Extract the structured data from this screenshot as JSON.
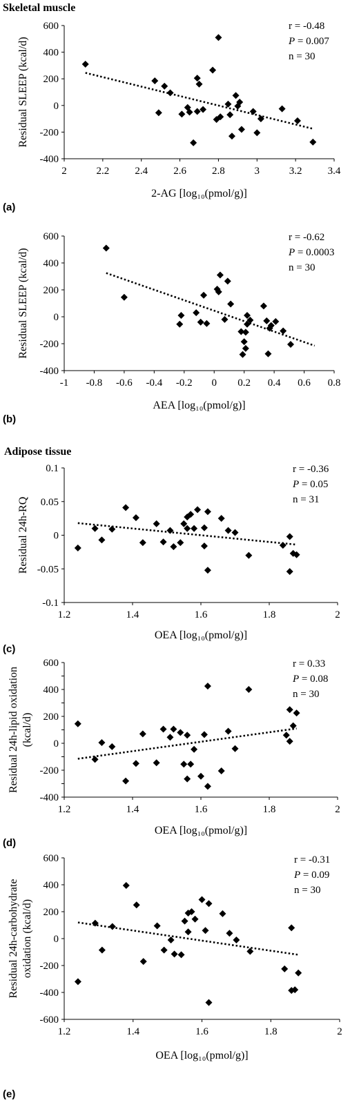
{
  "headings": {
    "skeletal": "Skeletal muscle",
    "adipose": "Adipose tissue"
  },
  "colors": {
    "marker": "#000000",
    "axis": "#000000",
    "trend": "#000000"
  },
  "chart_data": [
    {
      "type": "scatter",
      "panel": "(a)",
      "xlabel": "2-AG [log₁₀(pmol/g)]",
      "ylabel": "Residual SLEEP (kcal/d)",
      "xlim": [
        2,
        3.4
      ],
      "ylim": [
        -400,
        600
      ],
      "xticks": [
        2,
        2.2,
        2.4,
        2.6,
        2.8,
        3,
        3.2,
        3.4
      ],
      "xtick_labels": [
        "2",
        "2.2",
        "2.4",
        "2.6",
        "2.8",
        "3",
        "3.2",
        "3.4"
      ],
      "yticks": [
        -400,
        -200,
        0,
        200,
        400,
        600
      ],
      "ytick_labels": [
        "-400",
        "-200",
        "0",
        "200",
        "400",
        "600"
      ],
      "stats": [
        "r = -0.48",
        "P = 0.007",
        "n = 30"
      ],
      "trendline": {
        "style": "dotted",
        "x": [
          2.11,
          3.29
        ],
        "y": [
          245,
          -175
        ]
      },
      "points": [
        [
          2.11,
          310
        ],
        [
          2.47,
          185
        ],
        [
          2.49,
          -55
        ],
        [
          2.52,
          145
        ],
        [
          2.55,
          95
        ],
        [
          2.61,
          -65
        ],
        [
          2.64,
          -15
        ],
        [
          2.65,
          -50
        ],
        [
          2.67,
          -280
        ],
        [
          2.69,
          205
        ],
        [
          2.7,
          160
        ],
        [
          2.69,
          -45
        ],
        [
          2.72,
          -30
        ],
        [
          2.77,
          265
        ],
        [
          2.79,
          -105
        ],
        [
          2.8,
          510
        ],
        [
          2.81,
          -85
        ],
        [
          2.85,
          10
        ],
        [
          2.86,
          -70
        ],
        [
          2.87,
          -230
        ],
        [
          2.89,
          75
        ],
        [
          2.9,
          -5
        ],
        [
          2.91,
          25
        ],
        [
          2.92,
          -180
        ],
        [
          2.98,
          -45
        ],
        [
          3.0,
          -205
        ],
        [
          3.02,
          -100
        ],
        [
          3.13,
          -25
        ],
        [
          3.21,
          -115
        ],
        [
          3.29,
          -275
        ]
      ]
    },
    {
      "type": "scatter",
      "panel": "(b)",
      "xlabel": "AEA [log₁₀(pmol/g)]",
      "ylabel": "Residual SLEEP (kcal/d)",
      "xlim": [
        -1,
        0.8
      ],
      "ylim": [
        -400,
        600
      ],
      "xticks": [
        -1,
        -0.8,
        -0.6,
        -0.4,
        -0.2,
        0,
        0.2,
        0.4,
        0.6,
        0.8
      ],
      "xtick_labels": [
        "-1",
        "-0.8",
        "-0.6",
        "-0.4",
        "-0.2",
        "0",
        "0.2",
        "0.4",
        "0.6",
        "0.8"
      ],
      "yticks": [
        -400,
        -200,
        0,
        200,
        400,
        600
      ],
      "ytick_labels": [
        "-400",
        "-200",
        "0",
        "200",
        "400",
        "600"
      ],
      "stats": [
        "r = -0.62",
        "P = 0.0003",
        "n = 30"
      ],
      "trendline": {
        "style": "dotted",
        "x": [
          -0.72,
          0.67
        ],
        "y": [
          325,
          -215
        ]
      },
      "points": [
        [
          -0.72,
          510
        ],
        [
          -0.6,
          145
        ],
        [
          -0.23,
          -55
        ],
        [
          -0.22,
          10
        ],
        [
          -0.12,
          30
        ],
        [
          -0.09,
          -40
        ],
        [
          -0.07,
          160
        ],
        [
          -0.05,
          -50
        ],
        [
          0.02,
          205
        ],
        [
          0.03,
          185
        ],
        [
          0.04,
          310
        ],
        [
          0.07,
          -20
        ],
        [
          0.09,
          265
        ],
        [
          0.11,
          95
        ],
        [
          0.18,
          -110
        ],
        [
          0.19,
          -280
        ],
        [
          0.2,
          -185
        ],
        [
          0.21,
          -235
        ],
        [
          0.21,
          -115
        ],
        [
          0.22,
          10
        ],
        [
          0.24,
          -25
        ],
        [
          0.33,
          80
        ],
        [
          0.35,
          -30
        ],
        [
          0.36,
          -275
        ],
        [
          0.37,
          -85
        ],
        [
          0.38,
          -65
        ],
        [
          0.41,
          -35
        ],
        [
          0.46,
          -105
        ],
        [
          0.51,
          -205
        ],
        [
          0.22,
          -55
        ]
      ]
    },
    {
      "type": "scatter",
      "panel": "(c)",
      "xlabel": "OEA [log₁₀(pmol/g)]",
      "ylabel": "Residual 24h-RQ",
      "xlim": [
        1.2,
        2
      ],
      "ylim": [
        -0.1,
        0.1
      ],
      "xticks": [
        1.2,
        1.4,
        1.6,
        1.8,
        2
      ],
      "xtick_labels": [
        "1.2",
        "1.4",
        "1.6",
        "1.8",
        "2"
      ],
      "yticks": [
        -0.1,
        -0.05,
        0,
        0.05,
        0.1
      ],
      "ytick_labels": [
        "-0.1",
        "-0.05",
        "0",
        "0.05",
        "0.1"
      ],
      "stats": [
        "r = -0.36",
        "P = 0.05",
        "n = 31"
      ],
      "trendline": {
        "style": "dotted",
        "x": [
          1.24,
          1.88
        ],
        "y": [
          0.018,
          -0.014
        ]
      },
      "points": [
        [
          1.24,
          -0.019
        ],
        [
          1.29,
          0.01
        ],
        [
          1.31,
          -0.007
        ],
        [
          1.34,
          0.009
        ],
        [
          1.38,
          0.041
        ],
        [
          1.41,
          0.026
        ],
        [
          1.43,
          -0.011
        ],
        [
          1.47,
          0.017
        ],
        [
          1.49,
          -0.01
        ],
        [
          1.51,
          0.007
        ],
        [
          1.52,
          -0.017
        ],
        [
          1.54,
          -0.011
        ],
        [
          1.55,
          0.017
        ],
        [
          1.56,
          0.027
        ],
        [
          1.56,
          0.01
        ],
        [
          1.57,
          0.031
        ],
        [
          1.58,
          0.01
        ],
        [
          1.59,
          0.038
        ],
        [
          1.61,
          -0.016
        ],
        [
          1.61,
          0.011
        ],
        [
          1.62,
          -0.052
        ],
        [
          1.62,
          0.035
        ],
        [
          1.66,
          0.025
        ],
        [
          1.68,
          0.007
        ],
        [
          1.7,
          0.004
        ],
        [
          1.74,
          -0.03
        ],
        [
          1.84,
          -0.015
        ],
        [
          1.86,
          -0.002
        ],
        [
          1.86,
          -0.054
        ],
        [
          1.87,
          -0.027
        ],
        [
          1.88,
          -0.029
        ]
      ]
    },
    {
      "type": "scatter",
      "panel": "(d)",
      "xlabel": "OEA [log₁₀(pmol/g)]",
      "ylabel": "Residual 24h-lipid oxidation (kcal/d)",
      "ylabel_lines": [
        "Residual 24h-lipid oxidation",
        "(kcal/d)"
      ],
      "xlim": [
        1.2,
        2
      ],
      "ylim": [
        -400,
        600
      ],
      "xticks": [
        1.2,
        1.4,
        1.6,
        1.8,
        2
      ],
      "xtick_labels": [
        "1.2",
        "1.4",
        "1.6",
        "1.8",
        "2"
      ],
      "yticks": [
        -400,
        -300,
        -200,
        -100,
        0,
        100,
        200,
        300,
        400,
        500,
        600
      ],
      "ytick_labels": [
        "-400",
        "",
        "-200",
        "",
        "0",
        "",
        "200",
        "",
        "400",
        "",
        "600"
      ],
      "stats": [
        "r = 0.33",
        "P = 0.08",
        "n = 30"
      ],
      "trendline": {
        "style": "dotted",
        "x": [
          1.24,
          1.88
        ],
        "y": [
          -115,
          110
        ]
      },
      "points": [
        [
          1.24,
          145
        ],
        [
          1.29,
          -120
        ],
        [
          1.31,
          5
        ],
        [
          1.34,
          -25
        ],
        [
          1.38,
          -280
        ],
        [
          1.41,
          -150
        ],
        [
          1.43,
          70
        ],
        [
          1.47,
          -145
        ],
        [
          1.49,
          105
        ],
        [
          1.51,
          45
        ],
        [
          1.52,
          105
        ],
        [
          1.54,
          80
        ],
        [
          1.55,
          -155
        ],
        [
          1.56,
          60
        ],
        [
          1.56,
          -265
        ],
        [
          1.57,
          -155
        ],
        [
          1.58,
          -45
        ],
        [
          1.6,
          -245
        ],
        [
          1.61,
          65
        ],
        [
          1.62,
          425
        ],
        [
          1.62,
          -320
        ],
        [
          1.66,
          -205
        ],
        [
          1.68,
          90
        ],
        [
          1.7,
          -40
        ],
        [
          1.74,
          400
        ],
        [
          1.85,
          60
        ],
        [
          1.86,
          250
        ],
        [
          1.86,
          15
        ],
        [
          1.87,
          130
        ],
        [
          1.88,
          225
        ]
      ]
    },
    {
      "type": "scatter",
      "panel": "(e)",
      "xlabel": "OEA [log₁₀(pmol/g)]",
      "ylabel": "Residual 24h-carbohydrate oxidation (kcal/d)",
      "ylabel_lines": [
        "Residual 24h-carbohydrate",
        "oxidation (kcal/d)"
      ],
      "xlim": [
        1.2,
        2
      ],
      "ylim": [
        -600,
        600
      ],
      "xticks": [
        1.2,
        1.4,
        1.6,
        1.8,
        2
      ],
      "xtick_labels": [
        "1.2",
        "1.4",
        "1.6",
        "1.8",
        "2"
      ],
      "yticks": [
        -600,
        -400,
        -200,
        0,
        200,
        400,
        600
      ],
      "ytick_labels": [
        "-600",
        "-400",
        "-200",
        "0",
        "200",
        "400",
        "600"
      ],
      "stats": [
        "r = -0.31",
        "P = 0.09",
        "n = 30"
      ],
      "trendline": {
        "style": "dotted",
        "x": [
          1.24,
          1.88
        ],
        "y": [
          120,
          -120
        ]
      },
      "points": [
        [
          1.24,
          -320
        ],
        [
          1.29,
          115
        ],
        [
          1.31,
          -85
        ],
        [
          1.34,
          90
        ],
        [
          1.38,
          395
        ],
        [
          1.41,
          250
        ],
        [
          1.43,
          -170
        ],
        [
          1.47,
          95
        ],
        [
          1.49,
          -85
        ],
        [
          1.51,
          -10
        ],
        [
          1.52,
          -115
        ],
        [
          1.54,
          -120
        ],
        [
          1.55,
          130
        ],
        [
          1.56,
          50
        ],
        [
          1.56,
          190
        ],
        [
          1.57,
          200
        ],
        [
          1.58,
          145
        ],
        [
          1.6,
          290
        ],
        [
          1.61,
          60
        ],
        [
          1.62,
          260
        ],
        [
          1.62,
          -475
        ],
        [
          1.66,
          185
        ],
        [
          1.68,
          40
        ],
        [
          1.7,
          -10
        ],
        [
          1.74,
          -95
        ],
        [
          1.84,
          -225
        ],
        [
          1.86,
          80
        ],
        [
          1.86,
          -385
        ],
        [
          1.87,
          -380
        ],
        [
          1.88,
          -255
        ]
      ]
    }
  ]
}
